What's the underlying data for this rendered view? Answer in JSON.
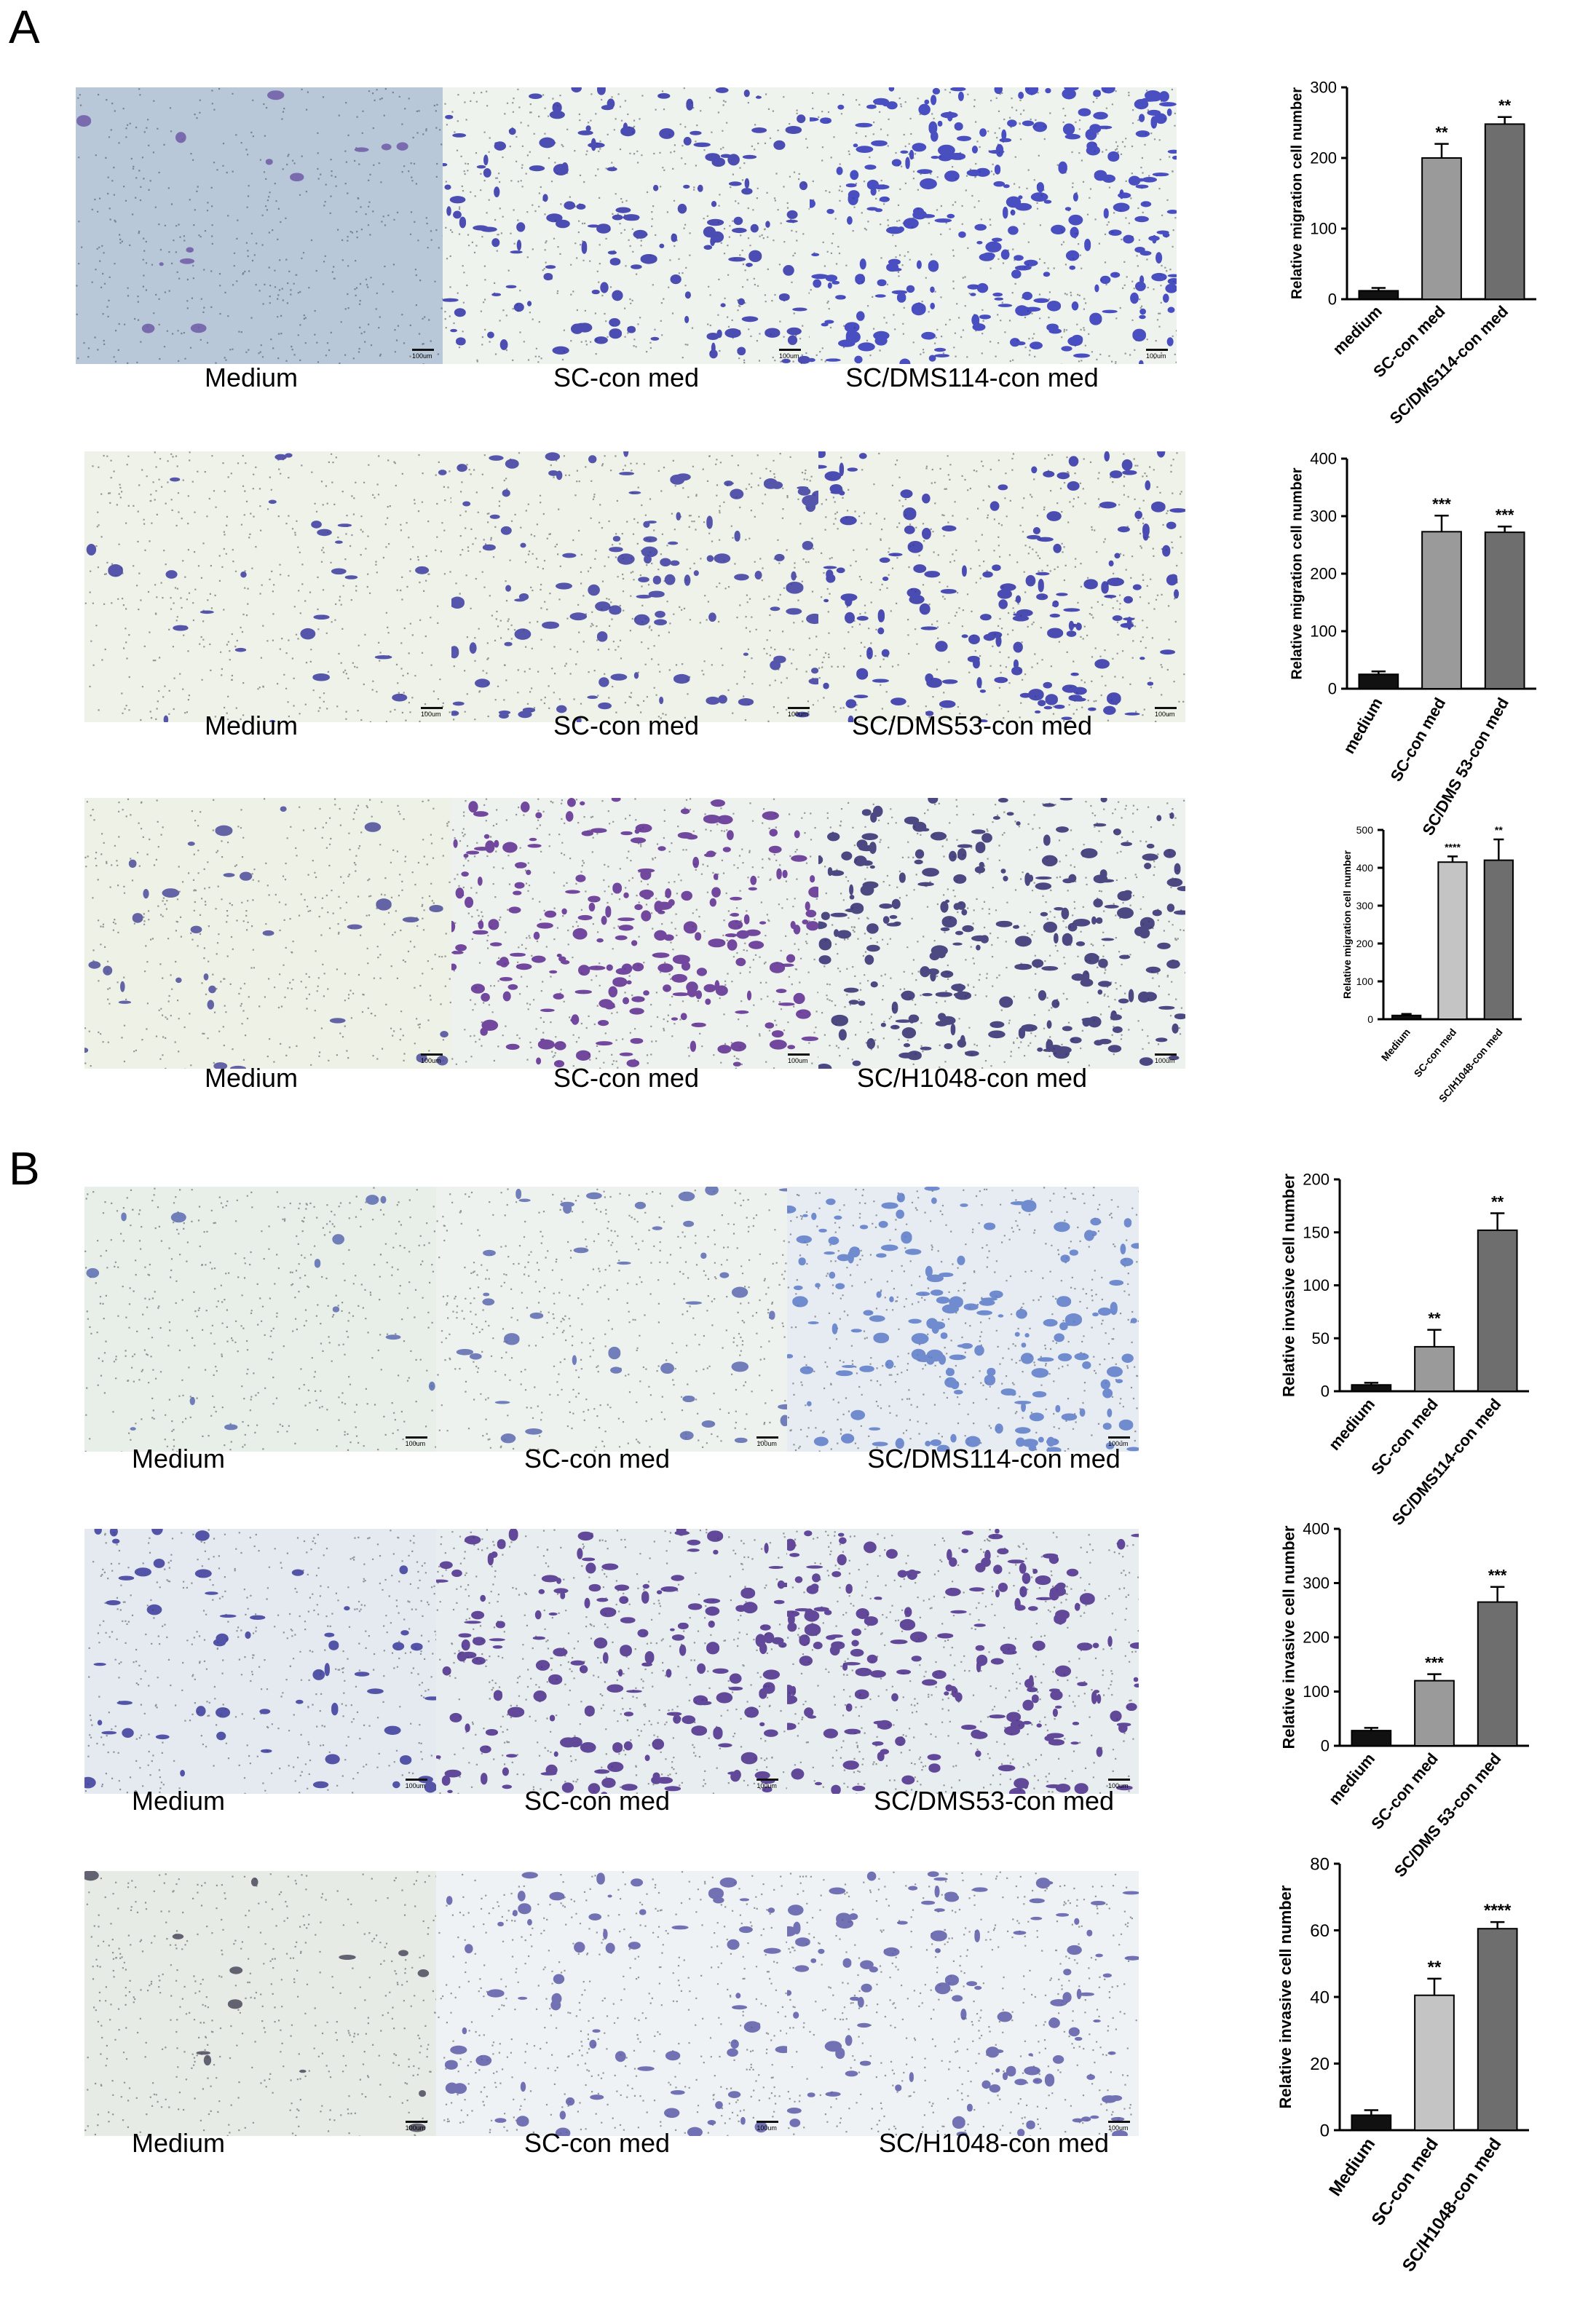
{
  "panels": {
    "A": {
      "letter": "A"
    },
    "B": {
      "letter": "B"
    }
  },
  "scale_label": "100um",
  "rows": [
    {
      "captions": [
        "Medium",
        "SC-con med",
        "SC/DMS114-con med"
      ],
      "stain": {
        "bg": [
          "#b8c8d8",
          "#eef3ee",
          "#eef3ee"
        ],
        "density": [
          0.05,
          0.55,
          0.95
        ],
        "cell": [
          "#6f5aa8",
          "#2e2fa8",
          "#2c30b8"
        ]
      },
      "chart_data": {
        "type": "bar",
        "categories": [
          "medium",
          "SC-con med",
          "SC/DMS114-con med"
        ],
        "values": [
          12,
          200,
          248
        ],
        "errors": [
          4,
          20,
          10
        ],
        "significance": [
          "",
          "**",
          "**"
        ],
        "colors": [
          "#111111",
          "#9a9a9a",
          "#6e6e6e"
        ],
        "ylabel": "Relative migration cell number",
        "ylim": [
          0,
          300
        ],
        "yticks": [
          0,
          100,
          200,
          300
        ]
      }
    },
    {
      "captions": [
        "Medium",
        "SC-con med",
        "SC/DMS53-con med"
      ],
      "stain": {
        "bg": [
          "#eef2e8",
          "#eef2e8",
          "#eef2e8"
        ],
        "density": [
          0.1,
          0.4,
          0.6
        ],
        "cell": [
          "#3a3aa0",
          "#3a3aa0",
          "#2e2fa8"
        ]
      },
      "chart_data": {
        "type": "bar",
        "categories": [
          "medium",
          "SC-con med",
          "SC/DMS 53-con med"
        ],
        "values": [
          25,
          273,
          272
        ],
        "errors": [
          5,
          28,
          10
        ],
        "significance": [
          "",
          "***",
          "***"
        ],
        "colors": [
          "#111111",
          "#9a9a9a",
          "#6e6e6e"
        ],
        "ylabel": "Relative migration cell number",
        "ylim": [
          0,
          400
        ],
        "yticks": [
          0,
          100,
          200,
          300,
          400
        ]
      }
    },
    {
      "captions": [
        "Medium",
        "SC-con med",
        "SC/H1048-con med"
      ],
      "stain": {
        "bg": [
          "#eef2e6",
          "#eef2ee",
          "#eef2ee"
        ],
        "density": [
          0.12,
          0.8,
          0.85
        ],
        "cell": [
          "#4a4a9a",
          "#5a2a8e",
          "#2e2a6e"
        ]
      },
      "chart_data": {
        "type": "bar",
        "categories": [
          "Medium",
          "SC-con med",
          "SC/H1048-con med"
        ],
        "values": [
          10,
          415,
          420
        ],
        "errors": [
          4,
          15,
          55
        ],
        "significance": [
          "",
          "****",
          "**"
        ],
        "colors": [
          "#111111",
          "#c4c4c4",
          "#6e6e6e"
        ],
        "ylabel": "Relative migration cell number",
        "ylim": [
          0,
          500
        ],
        "yticks": [
          0,
          100,
          200,
          300,
          400,
          500
        ]
      }
    },
    {
      "captions": [
        "Medium",
        "SC-con med",
        "SC/DMS114-con med"
      ],
      "stain": {
        "bg": [
          "#e8eee8",
          "#eef2ee",
          "#e6ecf2"
        ],
        "density": [
          0.05,
          0.15,
          0.6
        ],
        "cell": [
          "#5a6ab0",
          "#5a6ab0",
          "#5a7ac8"
        ]
      },
      "chart_data": {
        "type": "bar",
        "categories": [
          "medium",
          "SC-con med",
          "SC/DMS114-con med"
        ],
        "values": [
          6,
          42,
          152
        ],
        "errors": [
          2,
          16,
          16
        ],
        "significance": [
          "",
          "**",
          "**"
        ],
        "colors": [
          "#111111",
          "#9a9a9a",
          "#6e6e6e"
        ],
        "ylabel": "Relative invasive cell number",
        "ylim": [
          0,
          200
        ],
        "yticks": [
          0,
          50,
          100,
          150,
          200
        ]
      }
    },
    {
      "captions": [
        "Medium",
        "SC-con med",
        "SC/DMS53-con med"
      ],
      "stain": {
        "bg": [
          "#e4eaf0",
          "#e8eef0",
          "#e8eef0"
        ],
        "density": [
          0.2,
          0.6,
          0.7
        ],
        "cell": [
          "#3a3a9a",
          "#4a2a8a",
          "#4a2a8a"
        ]
      },
      "chart_data": {
        "type": "bar",
        "categories": [
          "medium",
          "SC-con med",
          "SC/DMS 53-con med"
        ],
        "values": [
          28,
          120,
          265
        ],
        "errors": [
          5,
          12,
          28
        ],
        "significance": [
          "",
          "***",
          "***"
        ],
        "colors": [
          "#111111",
          "#9a9a9a",
          "#6e6e6e"
        ],
        "ylabel": "Relative invasive cell number",
        "ylim": [
          0,
          400
        ],
        "yticks": [
          0,
          100,
          200,
          300,
          400
        ]
      }
    },
    {
      "captions": [
        "Medium",
        "SC-con med",
        "SC/H1048-con med"
      ],
      "stain": {
        "bg": [
          "#e6ebe6",
          "#eef2f4",
          "#eef2f4"
        ],
        "density": [
          0.05,
          0.25,
          0.4
        ],
        "cell": [
          "#4a4a5a",
          "#5a5aa8",
          "#5a5aa8"
        ]
      },
      "chart_data": {
        "type": "bar",
        "categories": [
          "Medium",
          "SC-con med",
          "SC/H1048-con med"
        ],
        "values": [
          4.5,
          40.5,
          60.5
        ],
        "errors": [
          1.5,
          5,
          2
        ],
        "significance": [
          "",
          "**",
          "****"
        ],
        "colors": [
          "#111111",
          "#c4c4c4",
          "#6e6e6e"
        ],
        "ylabel": "Relative invasive cell number",
        "ylim": [
          0,
          80
        ],
        "yticks": [
          0,
          20,
          40,
          60,
          80
        ]
      }
    }
  ]
}
